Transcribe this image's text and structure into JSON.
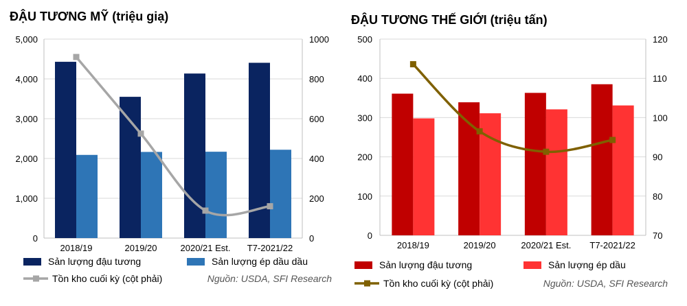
{
  "chart_data": [
    {
      "type": "bar",
      "title": "ĐẬU TƯƠNG MỸ (triệu giạ)",
      "categories": [
        "2018/19",
        "2019/20",
        "2020/21 Est.",
        "T7-2021/22"
      ],
      "ylim": [
        0,
        5000
      ],
      "yticks": [
        "0",
        "1,000",
        "2,000",
        "3,000",
        "4,000",
        "5,000"
      ],
      "y2lim": [
        0,
        1000
      ],
      "y2ticks": [
        "0",
        "200",
        "400",
        "600",
        "800",
        "1000"
      ],
      "series": [
        {
          "name": "Sản lượng đậu tương",
          "kind": "bar",
          "axis": "left",
          "color": "#0a2460",
          "values": [
            4430,
            3550,
            4135,
            4405
          ]
        },
        {
          "name": "Sản lượng ép dầu dầu",
          "kind": "bar",
          "axis": "left",
          "color": "#2e75b6",
          "values": [
            2090,
            2165,
            2170,
            2220
          ]
        },
        {
          "name": "Tồn kho cuối kỳ (cột phải)",
          "kind": "line",
          "axis": "right",
          "color": "#a6a6a6",
          "values": [
            910,
            525,
            138,
            160
          ]
        }
      ],
      "grid": true,
      "legend": "bottom",
      "source": "Nguồn: USDA, SFI Research"
    },
    {
      "type": "bar",
      "title": "ĐẬU TƯƠNG THẾ GIỚI (triệu tấn)",
      "categories": [
        "2018/19",
        "2019/20",
        "2020/21 Est.",
        "T7-2021/22"
      ],
      "ylim": [
        0,
        500
      ],
      "yticks": [
        "0",
        "100",
        "200",
        "300",
        "400",
        "500"
      ],
      "y2lim": [
        70,
        120
      ],
      "y2ticks": [
        "70",
        "80",
        "90",
        "100",
        "110",
        "120"
      ],
      "series": [
        {
          "name": "Sản lượng đậu tương",
          "kind": "bar",
          "axis": "left",
          "color": "#c00000",
          "values": [
            361,
            339,
            363,
            385
          ]
        },
        {
          "name": "Sản lượng ép dầu",
          "kind": "bar",
          "axis": "left",
          "color": "#ff3333",
          "values": [
            298,
            311,
            321,
            331
          ]
        },
        {
          "name": "Tồn kho cuối kỳ (cột phải)",
          "kind": "line",
          "axis": "right",
          "color": "#7f6000",
          "values": [
            113.6,
            96.5,
            91.3,
            94.3
          ]
        }
      ],
      "grid": true,
      "legend": "bottom",
      "source": "Nguồn: USDA, SFI Research"
    }
  ]
}
